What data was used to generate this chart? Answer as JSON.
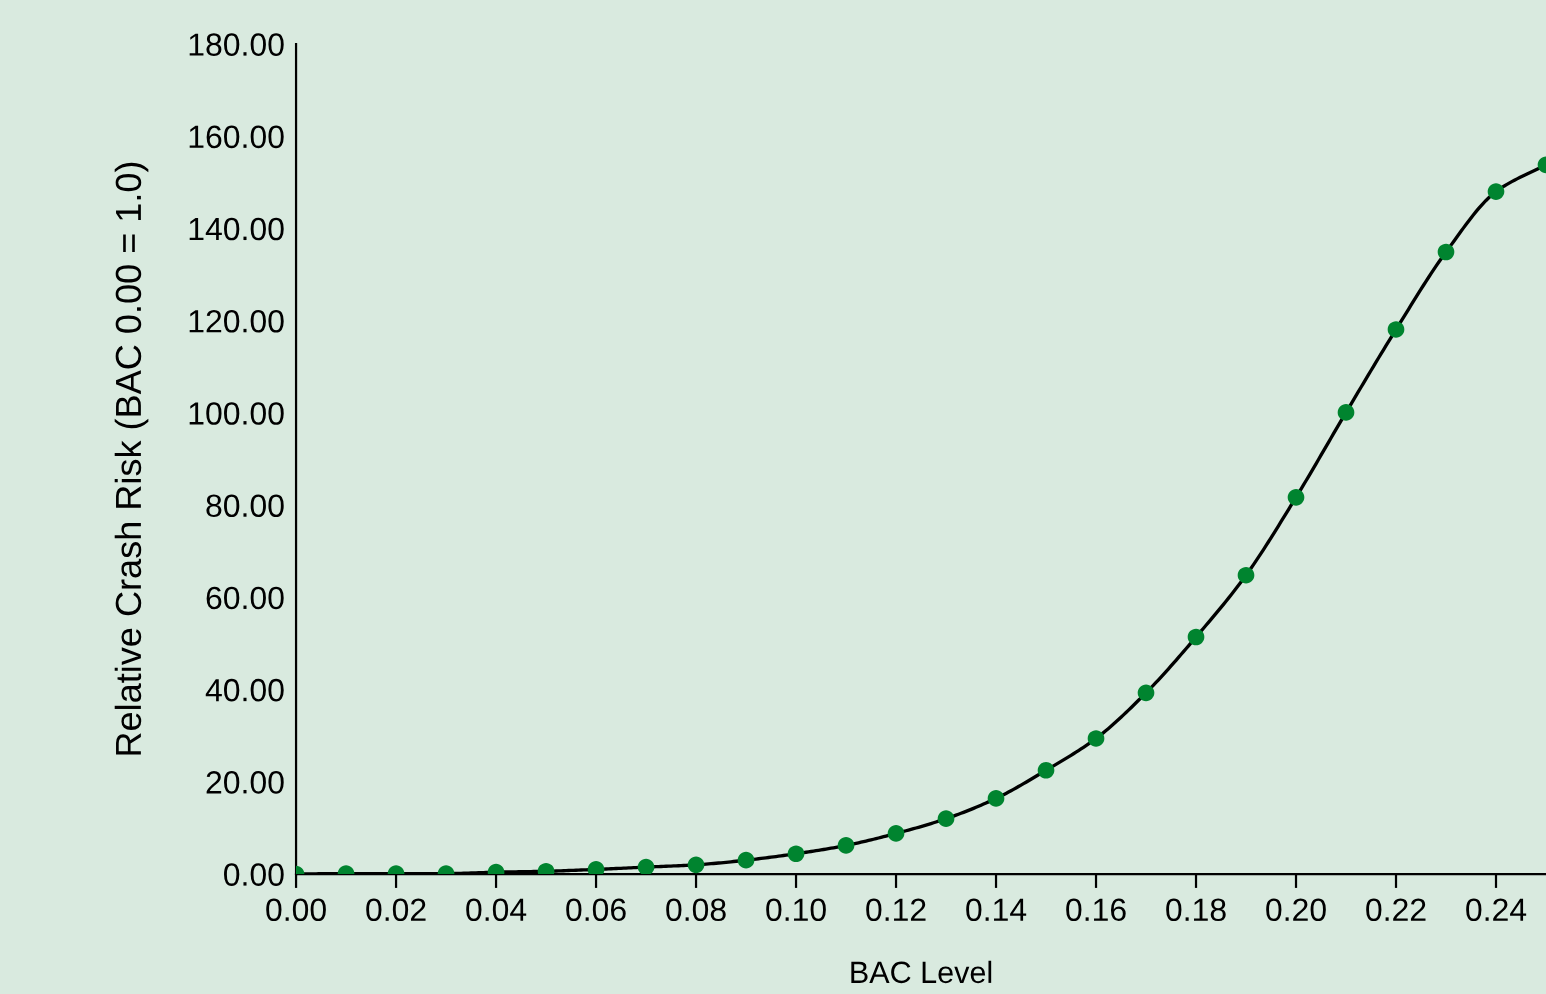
{
  "chart_data": {
    "type": "line",
    "xlabel": "BAC Level",
    "ylabel": "Relative Crash Risk (BAC 0.00 = 1.0)",
    "x": [
      0.0,
      0.01,
      0.02,
      0.03,
      0.04,
      0.05,
      0.06,
      0.07,
      0.08,
      0.09,
      0.1,
      0.11,
      0.12,
      0.13,
      0.14,
      0.15,
      0.16,
      0.17,
      0.18,
      0.19,
      0.2,
      0.21,
      0.22,
      0.23,
      0.24,
      0.25
    ],
    "series": [
      {
        "color": "#000000",
        "marker": "none",
        "values": [
          0,
          0.1,
          0.1,
          0.1,
          0.4,
          0.6,
          1.0,
          1.5,
          2.0,
          3.0,
          4.4,
          6.2,
          8.8,
          12.0,
          16.4,
          22.5,
          29.4,
          39.3,
          51.4,
          64.8,
          81.7,
          100.1,
          118.1,
          134.9,
          148.0,
          153.8
        ]
      },
      {
        "type": "scatter",
        "color": "#00842f",
        "marker": "circle",
        "values": [
          0,
          0.1,
          0.1,
          0.1,
          0.4,
          0.6,
          1.0,
          1.5,
          2.0,
          3.0,
          4.4,
          6.2,
          8.8,
          12.0,
          16.4,
          22.5,
          29.4,
          39.3,
          51.4,
          64.8,
          81.7,
          100.1,
          118.1,
          134.9,
          148.0,
          153.8
        ]
      }
    ],
    "xlim": [
      0,
      0.25
    ],
    "ylim": [
      0,
      180
    ],
    "xticks": [
      {
        "value": 0,
        "label": "0.00"
      },
      {
        "value": 0.02,
        "label": "0.02"
      },
      {
        "value": 0.04,
        "label": "0.04"
      },
      {
        "value": 0.06,
        "label": "0.06"
      },
      {
        "value": 0.08,
        "label": "0.08"
      },
      {
        "value": 0.1,
        "label": "0.10"
      },
      {
        "value": 0.12,
        "label": "0.12"
      },
      {
        "value": 0.14,
        "label": "0.14"
      },
      {
        "value": 0.16,
        "label": "0.16"
      },
      {
        "value": 0.18,
        "label": "0.18"
      },
      {
        "value": 0.2,
        "label": "0.20"
      },
      {
        "value": 0.22,
        "label": "0.22"
      },
      {
        "value": 0.24,
        "label": "0.24"
      }
    ],
    "yticks": [
      {
        "value": 0,
        "label": "0.00"
      },
      {
        "value": 20,
        "label": "20.00"
      },
      {
        "value": 40,
        "label": "40.00"
      },
      {
        "value": 60,
        "label": "60.00"
      },
      {
        "value": 80,
        "label": "80.00"
      },
      {
        "value": 100,
        "label": "100.00"
      },
      {
        "value": 120,
        "label": "120.00"
      },
      {
        "value": 140,
        "label": "140.00"
      },
      {
        "value": 160,
        "label": "160.00"
      },
      {
        "value": 180,
        "label": "180.00"
      }
    ],
    "grid": false
  }
}
